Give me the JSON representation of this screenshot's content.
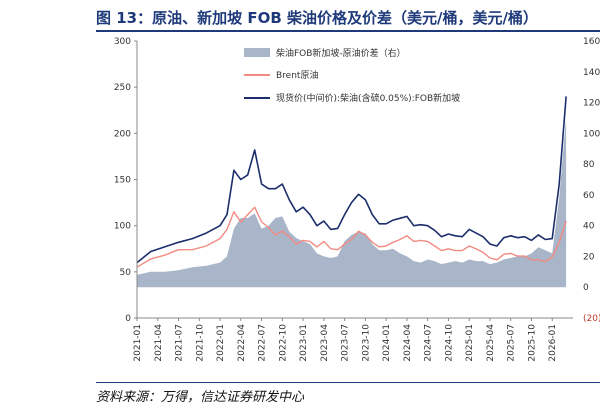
{
  "header": {
    "title": "图 13：原油、新加坡 FOB 柴油价格及价差（美元/桶，美元/桶）"
  },
  "footer": {
    "source": "资料来源：万得，信达证券研发中心"
  },
  "chart_data": {
    "type": "line",
    "title": "图 13：原油、新加坡 FOB 柴油价格及价差（美元/桶，美元/桶）",
    "xlabel": "",
    "ylabel": "",
    "x_ticks": [
      "2021-01",
      "2021-04",
      "2021-07",
      "2021-10",
      "2022-01",
      "2022-04",
      "2022-07",
      "2022-10",
      "2023-01",
      "2023-04",
      "2023-07",
      "2023-10",
      "2024-01",
      "2024-04",
      "2024-07",
      "2024-10",
      "2025-01",
      "2025-04",
      "2025-07",
      "2025-10",
      "2026-01"
    ],
    "ylim_left": [
      0,
      300
    ],
    "yticks_left": [
      "0",
      "50",
      "100",
      "150",
      "200",
      "250",
      "300"
    ],
    "ylim_right": [
      -20,
      160
    ],
    "yticks_right": [
      "(20)",
      "0",
      "20",
      "40",
      "60",
      "80",
      "100",
      "120",
      "140",
      "160"
    ],
    "legend_position": "top-center",
    "grid": false,
    "colors": {
      "spread": "#a9b5c9",
      "brent": "#f28b82",
      "diesel": "#1c2e6b",
      "axis": "#888888",
      "negative_label": "#c0392b"
    },
    "series": [
      {
        "name": "柴油FOB新加坡-原油价差（右）",
        "axis": "right",
        "style": "area",
        "x": [
          "2021-01",
          "2021-03",
          "2021-05",
          "2021-07",
          "2021-09",
          "2021-11",
          "2022-01",
          "2022-02",
          "2022-03",
          "2022-04",
          "2022-05",
          "2022-06",
          "2022-07",
          "2022-08",
          "2022-09",
          "2022-10",
          "2022-11",
          "2022-12",
          "2023-01",
          "2023-02",
          "2023-03",
          "2023-04",
          "2023-05",
          "2023-06",
          "2023-07",
          "2023-08",
          "2023-09",
          "2023-10",
          "2023-11",
          "2023-12",
          "2024-01",
          "2024-02",
          "2024-03",
          "2024-04",
          "2024-05",
          "2024-06",
          "2024-07",
          "2024-08",
          "2024-09",
          "2024-10",
          "2024-11",
          "2024-12",
          "2025-01",
          "2025-02",
          "2025-03",
          "2025-04",
          "2025-05",
          "2025-06",
          "2025-07",
          "2025-08",
          "2025-09",
          "2025-10",
          "2025-11",
          "2025-12",
          "2026-01",
          "2026-02",
          "2026-03"
        ],
        "values": [
          8,
          10,
          10,
          11,
          13,
          14,
          16,
          20,
          38,
          45,
          45,
          48,
          38,
          40,
          45,
          46,
          36,
          32,
          30,
          28,
          22,
          20,
          19,
          20,
          30,
          34,
          36,
          35,
          28,
          24,
          24,
          25,
          22,
          20,
          17,
          16,
          18,
          17,
          15,
          16,
          17,
          16,
          18,
          17,
          17,
          15,
          16,
          18,
          19,
          20,
          20,
          22,
          26,
          24,
          22,
          58,
          110
        ]
      },
      {
        "name": "Brent原油",
        "axis": "left",
        "style": "line",
        "x": [
          "2021-01",
          "2021-03",
          "2021-05",
          "2021-07",
          "2021-09",
          "2021-11",
          "2022-01",
          "2022-02",
          "2022-03",
          "2022-04",
          "2022-05",
          "2022-06",
          "2022-07",
          "2022-08",
          "2022-09",
          "2022-10",
          "2022-11",
          "2022-12",
          "2023-01",
          "2023-02",
          "2023-03",
          "2023-04",
          "2023-05",
          "2023-06",
          "2023-07",
          "2023-08",
          "2023-09",
          "2023-10",
          "2023-11",
          "2023-12",
          "2024-01",
          "2024-02",
          "2024-03",
          "2024-04",
          "2024-05",
          "2024-06",
          "2024-07",
          "2024-08",
          "2024-09",
          "2024-10",
          "2024-11",
          "2024-12",
          "2025-01",
          "2025-02",
          "2025-03",
          "2025-04",
          "2025-05",
          "2025-06",
          "2025-07",
          "2025-08",
          "2025-09",
          "2025-10",
          "2025-11",
          "2025-12",
          "2026-01",
          "2026-02",
          "2026-03"
        ],
        "values": [
          55,
          64,
          68,
          74,
          74,
          78,
          86,
          96,
          115,
          104,
          112,
          120,
          104,
          98,
          90,
          94,
          88,
          80,
          84,
          83,
          77,
          83,
          75,
          74,
          80,
          85,
          94,
          90,
          82,
          77,
          78,
          82,
          85,
          89,
          83,
          84,
          83,
          78,
          73,
          75,
          73,
          73,
          78,
          75,
          71,
          65,
          63,
          69,
          70,
          67,
          67,
          63,
          63,
          61,
          66,
          82,
          105
        ]
      },
      {
        "name": "现货价(中间价):柴油(含硫0.05%):FOB新加坡",
        "axis": "left",
        "style": "line",
        "x": [
          "2021-01",
          "2021-03",
          "2021-05",
          "2021-07",
          "2021-09",
          "2021-11",
          "2022-01",
          "2022-02",
          "2022-03",
          "2022-04",
          "2022-05",
          "2022-06",
          "2022-07",
          "2022-08",
          "2022-09",
          "2022-10",
          "2022-11",
          "2022-12",
          "2023-01",
          "2023-02",
          "2023-03",
          "2023-04",
          "2023-05",
          "2023-06",
          "2023-07",
          "2023-08",
          "2023-09",
          "2023-10",
          "2023-11",
          "2023-12",
          "2024-01",
          "2024-02",
          "2024-03",
          "2024-04",
          "2024-05",
          "2024-06",
          "2024-07",
          "2024-08",
          "2024-09",
          "2024-10",
          "2024-11",
          "2024-12",
          "2025-01",
          "2025-02",
          "2025-03",
          "2025-04",
          "2025-05",
          "2025-06",
          "2025-07",
          "2025-08",
          "2025-09",
          "2025-10",
          "2025-11",
          "2025-12",
          "2026-01",
          "2026-02",
          "2026-03"
        ],
        "values": [
          60,
          72,
          77,
          82,
          86,
          92,
          100,
          112,
          160,
          150,
          155,
          182,
          145,
          140,
          140,
          145,
          128,
          115,
          120,
          112,
          100,
          105,
          96,
          97,
          112,
          125,
          134,
          128,
          112,
          102,
          102,
          106,
          108,
          110,
          100,
          101,
          100,
          95,
          88,
          91,
          89,
          88,
          96,
          92,
          88,
          80,
          78,
          87,
          89,
          87,
          88,
          84,
          90,
          85,
          86,
          145,
          240
        ]
      }
    ]
  }
}
